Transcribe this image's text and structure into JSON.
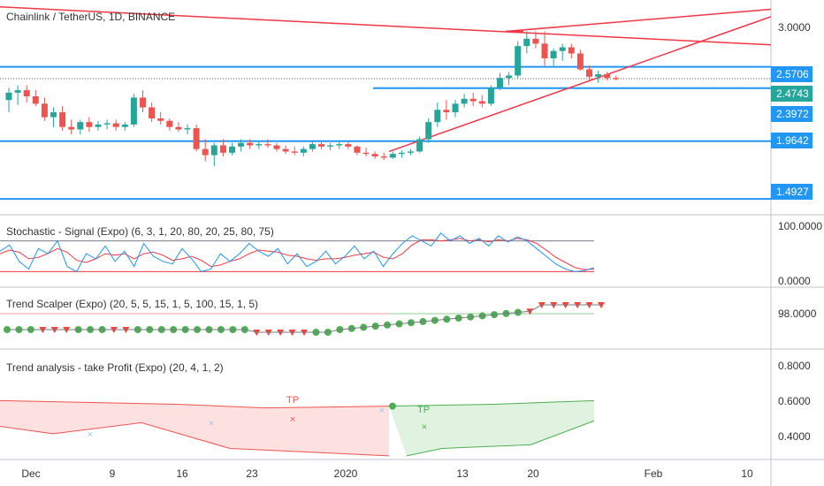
{
  "header": {
    "title": "Chainlink / TetherUS, 1D, BINANCE"
  },
  "panes": {
    "stochastic_title": "Stochastic - Signal (Expo) (6, 3, 1, 20, 80, 20, 25, 80, 75)",
    "scalper_title": "Trend Scalper (Expo) (20, 5, 5, 15, 1, 5, 100, 15, 1, 5)",
    "trend_title": "Trend analysis - take Profit  (Expo) (20, 4, 1, 2)"
  },
  "price_axis": {
    "tick": "3.0000",
    "badges": [
      "2.5706",
      "2.4743",
      "2.3972",
      "1.9642",
      "1.4927"
    ]
  },
  "stoch_axis": {
    "top": "100.0000",
    "bottom": "0.0000"
  },
  "scalper_axis": {
    "value": "98.0000"
  },
  "trend_axis": {
    "ticks": [
      "0.8000",
      "0.6000",
      "0.4000"
    ]
  },
  "date_axis": {
    "labels": [
      "Dec",
      "9",
      "16",
      "23",
      "2020",
      "13",
      "20",
      "Feb",
      "10"
    ]
  },
  "annotations": {
    "tp_left": "TP",
    "tp_right": "TP"
  },
  "colors": {
    "up": "#26a69a",
    "down": "#ef5350",
    "trendline": "#f23645",
    "level": "#2196f3",
    "stoch_k": "#2196f3",
    "stoch_d": "#f23645",
    "green_marker": "#4caf50",
    "red_marker": "#f44336"
  },
  "chart_data": {
    "type": "candlestick",
    "symbol": "LINK/USDT",
    "interval": "1D",
    "candles": [
      {
        "o": 2.3,
        "h": 2.4,
        "l": 2.2,
        "c": 2.36
      },
      {
        "o": 2.36,
        "h": 2.42,
        "l": 2.26,
        "c": 2.38
      },
      {
        "o": 2.38,
        "h": 2.42,
        "l": 2.28,
        "c": 2.33
      },
      {
        "o": 2.33,
        "h": 2.38,
        "l": 2.25,
        "c": 2.27
      },
      {
        "o": 2.27,
        "h": 2.32,
        "l": 2.13,
        "c": 2.16
      },
      {
        "o": 2.16,
        "h": 2.24,
        "l": 2.08,
        "c": 2.2
      },
      {
        "o": 2.2,
        "h": 2.25,
        "l": 2.05,
        "c": 2.08
      },
      {
        "o": 2.08,
        "h": 2.14,
        "l": 2.02,
        "c": 2.06
      },
      {
        "o": 2.06,
        "h": 2.14,
        "l": 2.02,
        "c": 2.12
      },
      {
        "o": 2.12,
        "h": 2.16,
        "l": 2.04,
        "c": 2.08
      },
      {
        "o": 2.08,
        "h": 2.13,
        "l": 2.05,
        "c": 2.1
      },
      {
        "o": 2.1,
        "h": 2.14,
        "l": 2.06,
        "c": 2.11
      },
      {
        "o": 2.11,
        "h": 2.14,
        "l": 2.05,
        "c": 2.08
      },
      {
        "o": 2.08,
        "h": 2.12,
        "l": 2.05,
        "c": 2.1
      },
      {
        "o": 2.1,
        "h": 2.35,
        "l": 2.08,
        "c": 2.32
      },
      {
        "o": 2.32,
        "h": 2.38,
        "l": 2.2,
        "c": 2.24
      },
      {
        "o": 2.24,
        "h": 2.28,
        "l": 2.12,
        "c": 2.15
      },
      {
        "o": 2.15,
        "h": 2.2,
        "l": 2.1,
        "c": 2.13
      },
      {
        "o": 2.13,
        "h": 2.15,
        "l": 2.05,
        "c": 2.08
      },
      {
        "o": 2.08,
        "h": 2.12,
        "l": 2.04,
        "c": 2.06
      },
      {
        "o": 2.06,
        "h": 2.1,
        "l": 2.02,
        "c": 2.07
      },
      {
        "o": 2.07,
        "h": 2.1,
        "l": 1.88,
        "c": 1.9
      },
      {
        "o": 1.9,
        "h": 1.98,
        "l": 1.8,
        "c": 1.85
      },
      {
        "o": 1.85,
        "h": 1.95,
        "l": 1.76,
        "c": 1.93
      },
      {
        "o": 1.93,
        "h": 1.98,
        "l": 1.84,
        "c": 1.87
      },
      {
        "o": 1.87,
        "h": 1.95,
        "l": 1.85,
        "c": 1.92
      },
      {
        "o": 1.92,
        "h": 1.98,
        "l": 1.88,
        "c": 1.95
      },
      {
        "o": 1.95,
        "h": 1.98,
        "l": 1.9,
        "c": 1.93
      },
      {
        "o": 1.93,
        "h": 1.97,
        "l": 1.9,
        "c": 1.94
      },
      {
        "o": 1.94,
        "h": 1.98,
        "l": 1.91,
        "c": 1.93
      },
      {
        "o": 1.93,
        "h": 1.95,
        "l": 1.88,
        "c": 1.9
      },
      {
        "o": 1.9,
        "h": 1.93,
        "l": 1.86,
        "c": 1.88
      },
      {
        "o": 1.88,
        "h": 1.92,
        "l": 1.85,
        "c": 1.87
      },
      {
        "o": 1.87,
        "h": 1.92,
        "l": 1.84,
        "c": 1.9
      },
      {
        "o": 1.9,
        "h": 1.96,
        "l": 1.88,
        "c": 1.94
      },
      {
        "o": 1.94,
        "h": 1.96,
        "l": 1.9,
        "c": 1.92
      },
      {
        "o": 1.92,
        "h": 1.95,
        "l": 1.89,
        "c": 1.93
      },
      {
        "o": 1.93,
        "h": 1.96,
        "l": 1.9,
        "c": 1.94
      },
      {
        "o": 1.94,
        "h": 1.96,
        "l": 1.9,
        "c": 1.92
      },
      {
        "o": 1.92,
        "h": 1.93,
        "l": 1.85,
        "c": 1.87
      },
      {
        "o": 1.87,
        "h": 1.91,
        "l": 1.84,
        "c": 1.86
      },
      {
        "o": 1.86,
        "h": 1.88,
        "l": 1.82,
        "c": 1.84
      },
      {
        "o": 1.84,
        "h": 1.87,
        "l": 1.81,
        "c": 1.83
      },
      {
        "o": 1.83,
        "h": 1.88,
        "l": 1.82,
        "c": 1.86
      },
      {
        "o": 1.86,
        "h": 1.89,
        "l": 1.83,
        "c": 1.87
      },
      {
        "o": 1.87,
        "h": 1.9,
        "l": 1.85,
        "c": 1.88
      },
      {
        "o": 1.88,
        "h": 2.0,
        "l": 1.87,
        "c": 1.98
      },
      {
        "o": 1.98,
        "h": 2.15,
        "l": 1.95,
        "c": 2.12
      },
      {
        "o": 2.12,
        "h": 2.28,
        "l": 2.08,
        "c": 2.22
      },
      {
        "o": 2.22,
        "h": 2.3,
        "l": 2.14,
        "c": 2.2
      },
      {
        "o": 2.2,
        "h": 2.3,
        "l": 2.16,
        "c": 2.27
      },
      {
        "o": 2.27,
        "h": 2.35,
        "l": 2.24,
        "c": 2.31
      },
      {
        "o": 2.31,
        "h": 2.36,
        "l": 2.25,
        "c": 2.29
      },
      {
        "o": 2.29,
        "h": 2.34,
        "l": 2.24,
        "c": 2.27
      },
      {
        "o": 2.27,
        "h": 2.42,
        "l": 2.25,
        "c": 2.4
      },
      {
        "o": 2.4,
        "h": 2.52,
        "l": 2.38,
        "c": 2.48
      },
      {
        "o": 2.48,
        "h": 2.53,
        "l": 2.42,
        "c": 2.5
      },
      {
        "o": 2.5,
        "h": 2.78,
        "l": 2.48,
        "c": 2.74
      },
      {
        "o": 2.74,
        "h": 2.86,
        "l": 2.68,
        "c": 2.8
      },
      {
        "o": 2.8,
        "h": 2.86,
        "l": 2.72,
        "c": 2.76
      },
      {
        "o": 2.76,
        "h": 2.86,
        "l": 2.58,
        "c": 2.64
      },
      {
        "o": 2.64,
        "h": 2.72,
        "l": 2.58,
        "c": 2.7
      },
      {
        "o": 2.7,
        "h": 2.76,
        "l": 2.62,
        "c": 2.73
      },
      {
        "o": 2.73,
        "h": 2.76,
        "l": 2.64,
        "c": 2.68
      },
      {
        "o": 2.68,
        "h": 2.71,
        "l": 2.54,
        "c": 2.55
      },
      {
        "o": 2.55,
        "h": 2.58,
        "l": 2.45,
        "c": 2.49
      },
      {
        "o": 2.49,
        "h": 2.54,
        "l": 2.44,
        "c": 2.51
      },
      {
        "o": 2.51,
        "h": 2.53,
        "l": 2.46,
        "c": 2.48
      },
      {
        "o": 2.48,
        "h": 2.5,
        "l": 2.46,
        "c": 2.47
      }
    ],
    "horizontal_levels": [
      2.5706,
      2.3972,
      1.9642,
      1.4927
    ],
    "last_price": 2.4743,
    "price_ylim": [
      1.4,
      3.08
    ],
    "stochastic": {
      "ylim": [
        0,
        100
      ],
      "levels": [
        20,
        80
      ],
      "k": [
        60,
        72,
        40,
        25,
        65,
        55,
        80,
        30,
        20,
        55,
        45,
        70,
        40,
        60,
        30,
        75,
        50,
        40,
        35,
        65,
        45,
        20,
        25,
        55,
        40,
        55,
        75,
        60,
        50,
        65,
        35,
        55,
        30,
        40,
        60,
        35,
        50,
        70,
        45,
        60,
        30,
        55,
        75,
        90,
        80,
        70,
        95,
        80,
        90,
        75,
        85,
        70,
        90,
        78,
        88,
        80,
        65,
        50,
        35,
        25,
        20,
        22,
        28
      ],
      "d": [
        55,
        62,
        58,
        45,
        48,
        55,
        65,
        58,
        42,
        38,
        45,
        55,
        52,
        55,
        45,
        55,
        58,
        52,
        42,
        45,
        50,
        42,
        30,
        33,
        40,
        45,
        55,
        62,
        60,
        58,
        52,
        50,
        45,
        42,
        45,
        45,
        48,
        52,
        55,
        58,
        48,
        45,
        55,
        72,
        82,
        82,
        80,
        82,
        85,
        80,
        82,
        78,
        82,
        80,
        85,
        82,
        75,
        62,
        48,
        38,
        28,
        24,
        25
      ]
    },
    "trend_scalper": {
      "bands_relative": true,
      "signal_sequence": [
        "up",
        "up",
        "up",
        "down",
        "down",
        "down",
        "up",
        "up",
        "up",
        "down",
        "down",
        "up",
        "up",
        "up",
        "up",
        "up",
        "up",
        "up",
        "up",
        "up",
        "up",
        "down",
        "down",
        "down",
        "down",
        "down",
        "up",
        "up",
        "up",
        "up",
        "up",
        "up",
        "up",
        "up",
        "up",
        "up",
        "up",
        "up",
        "up",
        "up",
        "up",
        "up",
        "up",
        "up",
        "down",
        "down",
        "down",
        "down",
        "down",
        "down",
        "down"
      ]
    },
    "trend_analysis": {
      "ylim": [
        0.28,
        0.88
      ],
      "ticks": [
        0.8,
        0.6,
        0.4
      ],
      "labels": [
        "TP",
        "TP"
      ]
    }
  }
}
